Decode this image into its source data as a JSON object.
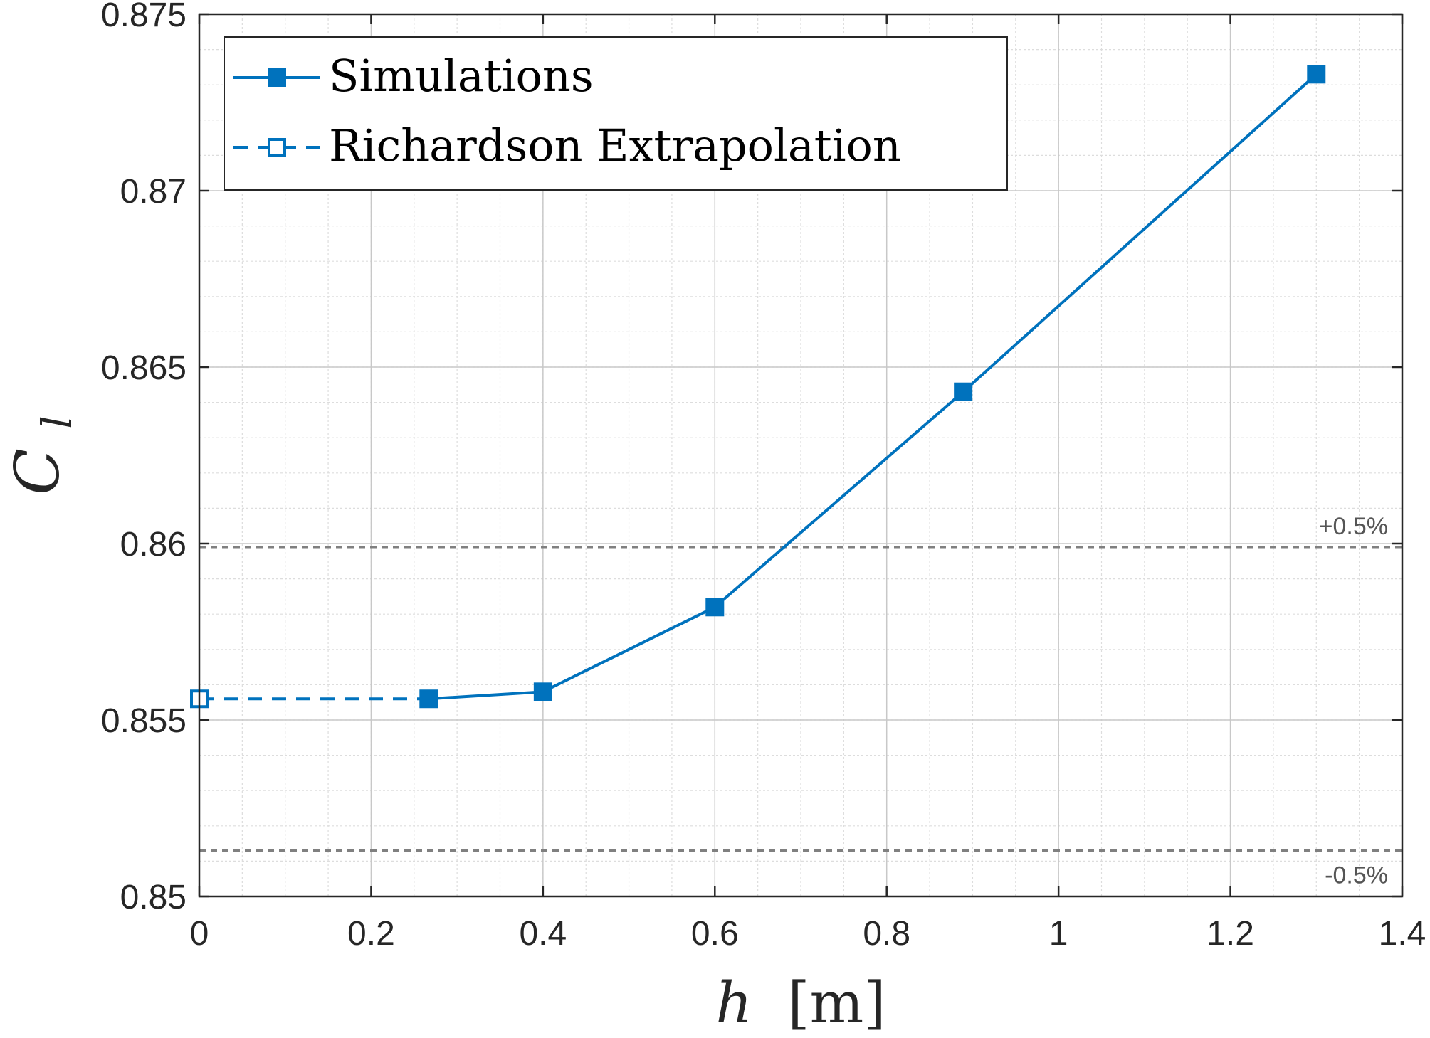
{
  "chart_data": {
    "type": "line",
    "xlabel_var": "h",
    "xlabel_unit": "[m]",
    "ylabel_main": "C",
    "ylabel_sub": "l",
    "xlim": [
      0,
      1.4
    ],
    "ylim": [
      0.85,
      0.875
    ],
    "x_ticks": [
      0,
      0.2,
      0.4,
      0.6,
      0.8,
      1.0,
      1.2,
      1.4
    ],
    "x_tick_labels": [
      "0",
      "0.2",
      "0.4",
      "0.6",
      "0.8",
      "1",
      "1.2",
      "1.4"
    ],
    "y_ticks": [
      0.85,
      0.855,
      0.86,
      0.865,
      0.87,
      0.875
    ],
    "y_tick_labels": [
      "0.85",
      "0.855",
      "0.86",
      "0.865",
      "0.87",
      "0.875"
    ],
    "grid": true,
    "minor_grid": true,
    "legend_position": "top-left",
    "series": [
      {
        "name": "Simulations",
        "style": "solid",
        "marker": "filled-square",
        "color": "#0072BD",
        "x": [
          0.267,
          0.4,
          0.6,
          0.889,
          1.3
        ],
        "y": [
          0.8556,
          0.8558,
          0.8582,
          0.8643,
          0.8733
        ]
      },
      {
        "name": "Richardson Extrapolation",
        "style": "dashed",
        "marker": "open-square",
        "color": "#0072BD",
        "x": [
          0,
          0.267
        ],
        "y": [
          0.8556,
          0.8556
        ]
      }
    ],
    "reference_lines": [
      {
        "label": "+0.5%",
        "y": 0.8599,
        "color": "#808080"
      },
      {
        "label": "-0.5%",
        "y": 0.8513,
        "color": "#808080"
      }
    ]
  }
}
